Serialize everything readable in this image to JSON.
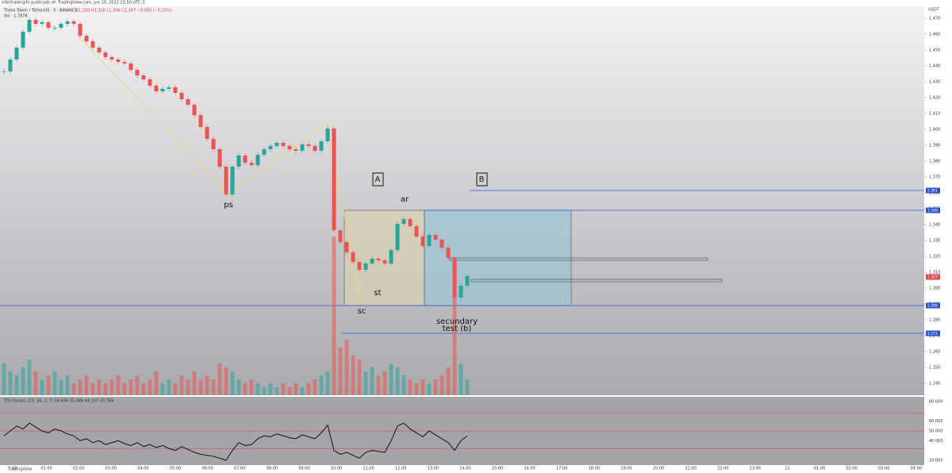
{
  "header": {
    "published": "infertradinglfx publicado en TradingView.com, Jun 10, 2022 13:50 UTC-3",
    "symbol": "Theta Token / TetherUS · 5 · BINANCE",
    "ohlc": "O1.310 H1.310 L1.306 C1.307 −0.003 (−0.23%)",
    "volume": "Vol · 1.787K",
    "currency": "USDT"
  },
  "chart_data": {
    "type": "candlestick",
    "candles": {
      "closes": [
        1.4365,
        1.444,
        1.4515,
        1.4615,
        1.469,
        1.4665,
        1.4675,
        1.464,
        1.464,
        1.4665,
        1.468,
        1.4665,
        1.459,
        1.4555,
        1.4515,
        1.4485,
        1.4455,
        1.444,
        1.4425,
        1.4415,
        1.4375,
        1.434,
        1.4315,
        1.4275,
        1.424,
        1.4255,
        1.4265,
        1.423,
        1.419,
        1.4155,
        1.409,
        1.4015,
        1.394,
        1.3875,
        1.3765,
        1.359,
        1.3765,
        1.3835,
        1.379,
        1.3775,
        1.384,
        1.3875,
        1.3895,
        1.3915,
        1.3895,
        1.3875,
        1.3865,
        1.3905,
        1.3895,
        1.3865,
        1.3925,
        1.4005,
        1.3365,
        1.329,
        1.3225,
        1.3165,
        1.3115,
        1.3155,
        1.3185,
        1.3175,
        1.3155,
        1.324,
        1.3405,
        1.3435,
        1.339,
        1.3325,
        1.3265,
        1.3335,
        1.3305,
        1.3255,
        1.319,
        1.294,
        1.3015,
        1.3075
      ],
      "volumes": [
        40,
        30,
        25,
        35,
        45,
        30,
        20,
        25,
        30,
        20,
        25,
        15,
        20,
        25,
        15,
        20,
        15,
        20,
        25,
        15,
        20,
        25,
        15,
        20,
        30,
        15,
        20,
        15,
        25,
        20,
        30,
        20,
        25,
        20,
        40,
        35,
        30,
        20,
        15,
        20,
        15,
        10,
        15,
        10,
        15,
        10,
        15,
        10,
        15,
        20,
        25,
        30,
        200,
        60,
        70,
        50,
        45,
        30,
        35,
        25,
        30,
        40,
        35,
        25,
        20,
        15,
        20,
        15,
        20,
        25,
        35,
        160,
        40,
        20
      ],
      "rsi": [
        45,
        50,
        55,
        52,
        58,
        54,
        50,
        48,
        52,
        50,
        47,
        45,
        40,
        42,
        38,
        40,
        36,
        38,
        40,
        37,
        35,
        38,
        34,
        36,
        33,
        35,
        32,
        30,
        34,
        31,
        28,
        26,
        25,
        24,
        22,
        20,
        30,
        38,
        35,
        36,
        42,
        45,
        44,
        47,
        45,
        43,
        42,
        46,
        44,
        42,
        48,
        56,
        30,
        26,
        28,
        25,
        22,
        28,
        30,
        29,
        28,
        40,
        55,
        58,
        52,
        48,
        44,
        50,
        46,
        42,
        38,
        30,
        40,
        45
      ]
    },
    "ylim": [
      1.2325,
      1.4775
    ],
    "yticks": [
      {
        "value": 1.24,
        "label": "1.240"
      },
      {
        "value": 1.25,
        "label": "1.250"
      },
      {
        "value": 1.26,
        "label": "1.260"
      },
      {
        "value": 1.27,
        "label": "1.270"
      },
      {
        "value": 1.28,
        "label": "1.280"
      },
      {
        "value": 1.29,
        "label": "1.290"
      },
      {
        "value": 1.3,
        "label": "1.300"
      },
      {
        "value": 1.31,
        "label": "1.310"
      },
      {
        "value": 1.32,
        "label": "1.320"
      },
      {
        "value": 1.33,
        "label": "1.330"
      },
      {
        "value": 1.34,
        "label": "1.340"
      },
      {
        "value": 1.35,
        "label": "1.350"
      },
      {
        "value": 1.36,
        "label": "1.360"
      },
      {
        "value": 1.37,
        "label": "1.370"
      },
      {
        "value": 1.38,
        "label": "1.380"
      },
      {
        "value": 1.39,
        "label": "1.390"
      },
      {
        "value": 1.4,
        "label": "1.400"
      },
      {
        "value": 1.41,
        "label": "1.410"
      },
      {
        "value": 1.42,
        "label": "1.420"
      },
      {
        "value": 1.43,
        "label": "1.430"
      },
      {
        "value": 1.44,
        "label": "1.440"
      },
      {
        "value": 1.45,
        "label": "1.450"
      },
      {
        "value": 1.46,
        "label": "1.460"
      },
      {
        "value": 1.47,
        "label": "1.470"
      }
    ],
    "levels": [
      {
        "value": 1.3615,
        "label": "1.361"
      },
      {
        "value": 1.349,
        "label": "1.349"
      },
      {
        "value": 1.289,
        "label": "1.289"
      },
      {
        "value": 1.2715,
        "label": "1.271"
      }
    ],
    "last_price": {
      "value": 1.307,
      "label": "1.307"
    },
    "x_labels": [
      "10",
      "01:00",
      "02:00",
      "03:00",
      "04:00",
      "05:00",
      "06:00",
      "07:00",
      "08:00",
      "09:00",
      "10:00",
      "11:00",
      "12:00",
      "13:00",
      "14:00",
      "15:00",
      "16:00",
      "17:00",
      "18:00",
      "19:00",
      "20:00",
      "21:00",
      "22:00",
      "23:00",
      "11",
      "01:00",
      "02:00",
      "03:00",
      "04:00"
    ],
    "annotations": [
      "A",
      "B",
      "ps",
      "ar",
      "sc",
      "st",
      "secundary",
      "test (b)"
    ],
    "oscillator": {
      "title": "TDI (Goals) (13, 34, 2, 7) 58.606 35.486 44.157 43.769",
      "ylim": [
        15,
        85
      ],
      "yticks": [
        {
          "value": 80,
          "label": "80.000"
        },
        {
          "value": 60,
          "label": "60.000"
        },
        {
          "value": 50,
          "label": "50.000"
        },
        {
          "value": 40,
          "label": "40.000"
        },
        {
          "value": 20,
          "label": "20.000"
        }
      ],
      "levels": [
        68,
        50,
        32
      ]
    }
  },
  "footer": "TradingView"
}
